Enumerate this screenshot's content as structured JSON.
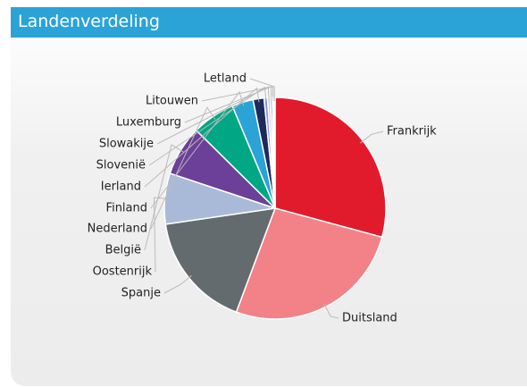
{
  "chart_data": {
    "type": "pie",
    "title": "Landenverdeling",
    "categories": [
      "Frankrijk",
      "Duitsland",
      "Spanje",
      "Oostenrijk",
      "België",
      "Nederland",
      "Finland",
      "Ierland",
      "Slovenië",
      "Slowakije",
      "Luxemburg",
      "Litouwen",
      "Letland"
    ],
    "values": [
      29.2,
      26.5,
      17,
      7.4,
      7.3,
      6.3,
      3.1,
      1.6,
      0.5,
      0.4,
      0.3,
      0.2,
      0.2
    ],
    "colors": [
      "#e21b2c",
      "#f28287",
      "#646b6f",
      "#a9bad9",
      "#6c3f98",
      "#00a784",
      "#2ba3d6",
      "#1e2a5c",
      "#8a93c9",
      "#c9cbe9",
      "#7d8fa1",
      "#b3c6e0",
      "#d4dbea"
    ]
  }
}
